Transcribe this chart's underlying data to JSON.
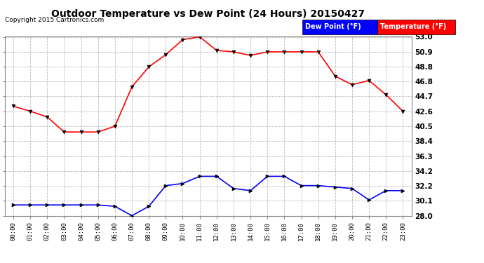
{
  "title": "Outdoor Temperature vs Dew Point (24 Hours) 20150427",
  "copyright": "Copyright 2015 Cartronics.com",
  "hours": [
    "00:00",
    "01:00",
    "02:00",
    "03:00",
    "04:00",
    "05:00",
    "06:00",
    "07:00",
    "08:00",
    "09:00",
    "10:00",
    "11:00",
    "12:00",
    "13:00",
    "14:00",
    "15:00",
    "16:00",
    "17:00",
    "18:00",
    "19:00",
    "20:00",
    "21:00",
    "22:00",
    "23:00"
  ],
  "temperature": [
    43.3,
    42.6,
    41.8,
    39.7,
    39.7,
    39.7,
    40.5,
    46.0,
    48.8,
    50.5,
    52.6,
    53.0,
    51.1,
    50.9,
    50.4,
    50.9,
    50.9,
    50.9,
    50.9,
    47.5,
    46.3,
    46.9,
    44.9,
    42.6
  ],
  "dew_point": [
    29.5,
    29.5,
    29.5,
    29.5,
    29.5,
    29.5,
    29.3,
    28.0,
    29.3,
    32.2,
    32.5,
    33.5,
    33.5,
    31.8,
    31.5,
    33.5,
    33.5,
    32.2,
    32.2,
    32.0,
    31.8,
    30.2,
    31.5,
    31.5
  ],
  "temp_color": "#ff0000",
  "dew_color": "#0000ff",
  "ylim_min": 28.0,
  "ylim_max": 53.0,
  "yticks": [
    28.0,
    30.1,
    32.2,
    34.2,
    36.3,
    38.4,
    40.5,
    42.6,
    44.7,
    46.8,
    48.8,
    50.9,
    53.0
  ],
  "background_color": "#ffffff",
  "grid_color": "#bbbbbb",
  "legend_dew_label": "Dew Point (°F)",
  "legend_temp_label": "Temperature (°F)"
}
